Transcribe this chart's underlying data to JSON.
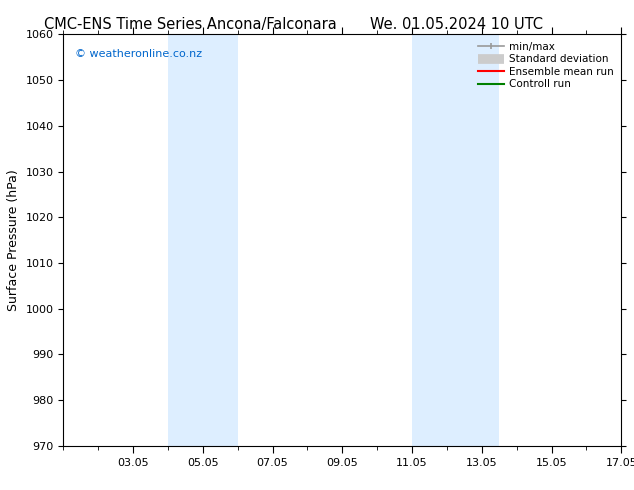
{
  "title_left": "CMC-ENS Time Series Ancona/Falconara",
  "title_right": "We. 01.05.2024 10 UTC",
  "ylabel": "Surface Pressure (hPa)",
  "ylim": [
    970,
    1060
  ],
  "yticks": [
    970,
    980,
    990,
    1000,
    1010,
    1020,
    1030,
    1040,
    1050,
    1060
  ],
  "xlim": [
    0,
    16
  ],
  "xtick_positions": [
    2,
    4,
    6,
    8,
    10,
    12,
    14,
    16
  ],
  "xtick_labels": [
    "03.05",
    "05.05",
    "07.05",
    "09.05",
    "11.05",
    "13.05",
    "15.05",
    "17.05"
  ],
  "shaded_regions": [
    {
      "xmin": 3.0,
      "xmax": 5.0,
      "color": "#ddeeff"
    },
    {
      "xmin": 10.0,
      "xmax": 12.5,
      "color": "#ddeeff"
    }
  ],
  "watermark_text": "© weatheronline.co.nz",
  "watermark_color": "#0066cc",
  "legend_entries": [
    {
      "label": "min/max",
      "color": "#999999",
      "lw": 1.2
    },
    {
      "label": "Standard deviation",
      "color": "#cccccc",
      "lw": 7
    },
    {
      "label": "Ensemble mean run",
      "color": "#ff0000",
      "lw": 1.5
    },
    {
      "label": "Controll run",
      "color": "#008000",
      "lw": 1.5
    }
  ],
  "bg_color": "#ffffff",
  "title_fontsize": 10.5,
  "ylabel_fontsize": 9,
  "tick_fontsize": 8,
  "watermark_fontsize": 8,
  "legend_fontsize": 7.5
}
